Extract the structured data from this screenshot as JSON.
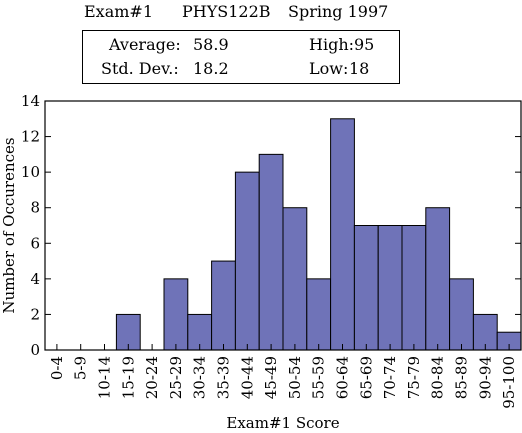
{
  "header": {
    "exam": "Exam#1",
    "course": "PHYS122B",
    "term": "Spring 1997"
  },
  "stats": {
    "average_label": "Average:",
    "average_value": "58.9",
    "stddev_label": "Std. Dev.:",
    "stddev_value": "18.2",
    "high_label": "High:",
    "high_value": "95",
    "low_label": "Low:",
    "low_value": "18"
  },
  "chart_data": {
    "type": "bar",
    "categories": [
      "0-4",
      "5-9",
      "10-14",
      "15-19",
      "20-24",
      "25-29",
      "30-34",
      "35-39",
      "40-44",
      "45-49",
      "50-54",
      "55-59",
      "60-64",
      "65-69",
      "70-74",
      "75-79",
      "80-84",
      "85-89",
      "90-94",
      "95-100"
    ],
    "values": [
      0,
      0,
      0,
      2,
      0,
      4,
      2,
      5,
      10,
      11,
      8,
      4,
      13,
      7,
      7,
      7,
      8,
      4,
      2,
      1
    ],
    "xlabel": "Exam#1 Score",
    "ylabel": "Number of Occurences",
    "ylim": [
      0,
      14
    ],
    "yticks": [
      0,
      2,
      4,
      6,
      8,
      10,
      12,
      14
    ],
    "bar_color": "#6F73B8",
    "grid": false
  }
}
